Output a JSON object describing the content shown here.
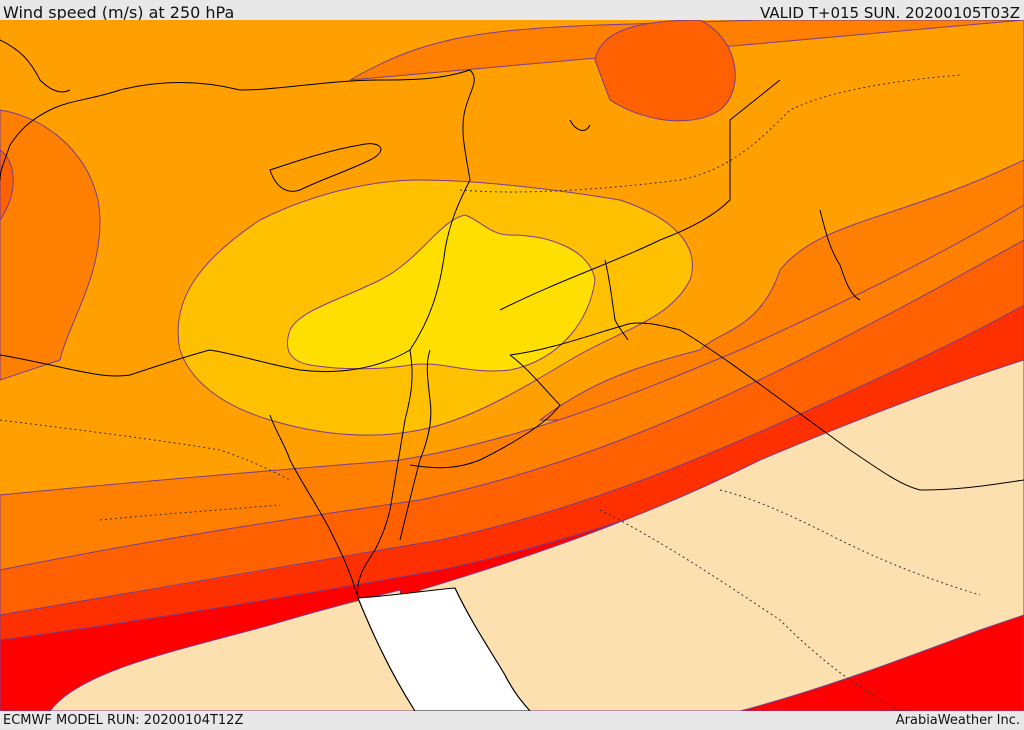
{
  "header": {
    "title": "Wind speed (m/s) at 250 hPa",
    "valid_time": "VALID T+015 SUN. 20200105T03Z"
  },
  "footer": {
    "model_run": "ECMWF MODEL RUN: 20200104T12Z",
    "credit": "ArabiaWeather Inc."
  },
  "map": {
    "variable": "wind speed",
    "pressure_level_hpa": 250,
    "colors": {
      "band_1": "#ffdf00",
      "band_2": "#ffc000",
      "band_3": "#ffa000",
      "band_4": "#ff8000",
      "band_5": "#ff6000",
      "band_6": "#ff3000",
      "band_7": "#ff0000",
      "land_low": "#fde0b0",
      "sea_low": "#ffffff",
      "coastline": "#000000",
      "contour": "#7a3c8c"
    }
  }
}
